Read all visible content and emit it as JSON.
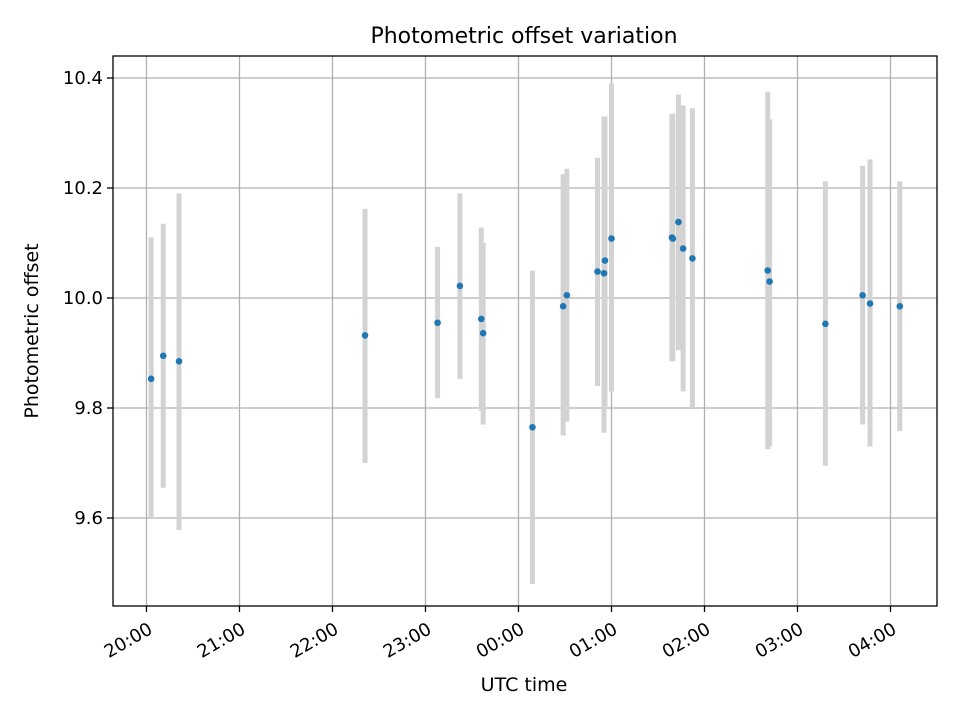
{
  "chart_data": {
    "type": "scatter",
    "title": "Photometric offset variation",
    "xlabel": "UTC time",
    "ylabel": "Photometric offset",
    "grid": true,
    "ylim": [
      9.44,
      10.44
    ],
    "xlim": [
      19.64,
      28.5
    ],
    "y_ticks": [
      9.6,
      9.8,
      10.0,
      10.2,
      10.4
    ],
    "y_tick_labels": [
      "9.6",
      "9.8",
      "10.0",
      "10.2",
      "10.4"
    ],
    "x_ticks": [
      20,
      21,
      22,
      23,
      24,
      25,
      26,
      27,
      28
    ],
    "x_tick_labels": [
      "20:00",
      "21:00",
      "22:00",
      "23:00",
      "00:00",
      "01:00",
      "02:00",
      "03:00",
      "04:00"
    ],
    "colors": {
      "points": "#1f77b4",
      "errorbars": "#d3d3d3"
    },
    "x_unit": "hours since 20:00 UTC, offset so 00:00 = 24",
    "points": [
      {
        "x": 20.05,
        "y": 9.853,
        "lo": 9.6,
        "hi": 10.11
      },
      {
        "x": 20.18,
        "y": 9.895,
        "lo": 9.655,
        "hi": 10.135
      },
      {
        "x": 20.35,
        "y": 9.885,
        "lo": 9.578,
        "hi": 10.19
      },
      {
        "x": 22.35,
        "y": 9.932,
        "lo": 9.7,
        "hi": 10.162
      },
      {
        "x": 23.13,
        "y": 9.955,
        "lo": 9.818,
        "hi": 10.093
      },
      {
        "x": 23.37,
        "y": 10.022,
        "lo": 9.853,
        "hi": 10.19
      },
      {
        "x": 23.6,
        "y": 9.962,
        "lo": 9.795,
        "hi": 10.128
      },
      {
        "x": 23.62,
        "y": 9.936,
        "lo": 9.77,
        "hi": 10.1
      },
      {
        "x": 24.15,
        "y": 9.765,
        "lo": 9.48,
        "hi": 10.05
      },
      {
        "x": 24.48,
        "y": 9.985,
        "lo": 9.75,
        "hi": 10.225
      },
      {
        "x": 24.52,
        "y": 10.005,
        "lo": 9.775,
        "hi": 10.235
      },
      {
        "x": 24.85,
        "y": 10.048,
        "lo": 9.84,
        "hi": 10.255
      },
      {
        "x": 24.92,
        "y": 10.045,
        "lo": 9.755,
        "hi": 10.33
      },
      {
        "x": 24.93,
        "y": 10.068,
        "lo": 9.8,
        "hi": 10.33
      },
      {
        "x": 25.0,
        "y": 10.108,
        "lo": 9.83,
        "hi": 10.39
      },
      {
        "x": 25.65,
        "y": 10.11,
        "lo": 9.885,
        "hi": 10.335
      },
      {
        "x": 25.66,
        "y": 10.108,
        "lo": 9.885,
        "hi": 10.335
      },
      {
        "x": 25.72,
        "y": 10.138,
        "lo": 9.905,
        "hi": 10.37
      },
      {
        "x": 25.77,
        "y": 10.09,
        "lo": 9.83,
        "hi": 10.35
      },
      {
        "x": 25.87,
        "y": 10.072,
        "lo": 9.8,
        "hi": 10.345
      },
      {
        "x": 26.68,
        "y": 10.05,
        "lo": 9.725,
        "hi": 10.375
      },
      {
        "x": 26.7,
        "y": 10.03,
        "lo": 9.73,
        "hi": 10.325
      },
      {
        "x": 27.3,
        "y": 9.953,
        "lo": 9.695,
        "hi": 10.212
      },
      {
        "x": 27.7,
        "y": 10.005,
        "lo": 9.77,
        "hi": 10.24
      },
      {
        "x": 27.78,
        "y": 9.99,
        "lo": 9.73,
        "hi": 10.252
      },
      {
        "x": 28.1,
        "y": 9.985,
        "lo": 9.758,
        "hi": 10.212
      }
    ]
  }
}
